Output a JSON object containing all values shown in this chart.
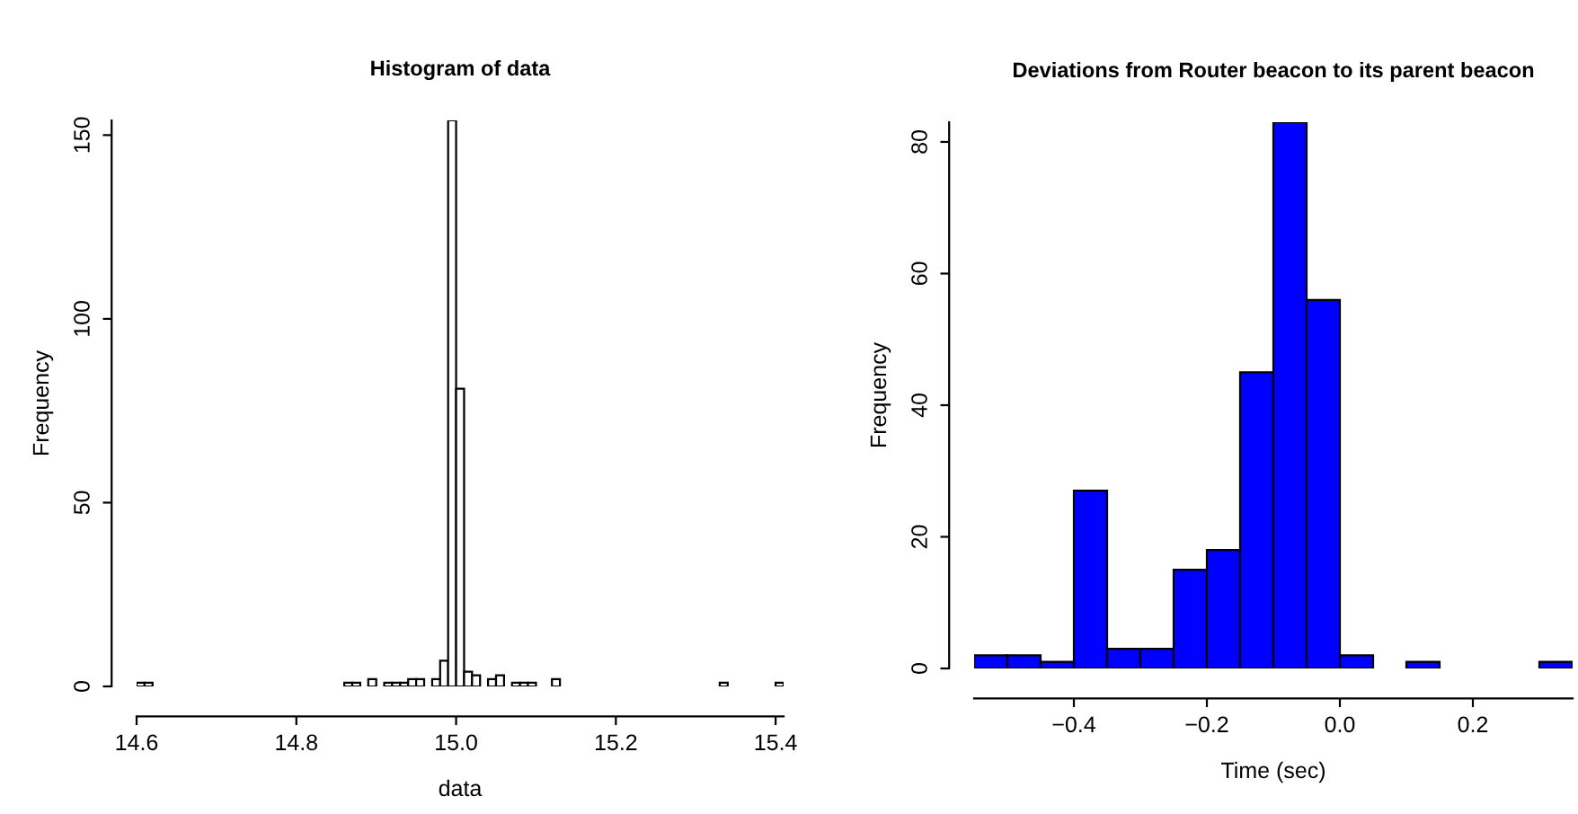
{
  "chart_data": [
    {
      "type": "histogram",
      "title": "Histogram of data",
      "xlabel": "data",
      "ylabel": "Frequency",
      "color": "#ffffff",
      "bins": [
        14.6,
        14.61,
        14.62,
        14.63,
        14.64,
        14.65,
        14.66,
        14.67,
        14.68,
        14.69,
        14.7,
        14.71,
        14.72,
        14.73,
        14.74,
        14.75,
        14.76,
        14.77,
        14.78,
        14.79,
        14.8,
        14.81,
        14.82,
        14.83,
        14.84,
        14.85,
        14.86,
        14.87,
        14.88,
        14.89,
        14.9,
        14.91,
        14.92,
        14.93,
        14.94,
        14.95,
        14.96,
        14.97,
        14.98,
        14.99,
        15.0,
        15.01,
        15.02,
        15.03,
        15.04,
        15.05,
        15.06,
        15.07,
        15.08,
        15.09,
        15.1,
        15.11,
        15.12,
        15.13,
        15.14,
        15.15,
        15.16,
        15.17,
        15.18,
        15.19,
        15.2,
        15.21,
        15.22,
        15.23,
        15.24,
        15.25,
        15.26,
        15.27,
        15.28,
        15.29,
        15.3,
        15.31,
        15.32,
        15.33,
        15.34,
        15.35,
        15.36,
        15.37,
        15.38,
        15.39,
        15.4,
        15.41
      ],
      "values": [
        1,
        1,
        0,
        0,
        0,
        0,
        0,
        0,
        0,
        0,
        0,
        0,
        0,
        0,
        0,
        0,
        0,
        0,
        0,
        0,
        0,
        0,
        0,
        0,
        0,
        0,
        1,
        1,
        0,
        2,
        0,
        1,
        1,
        1,
        2,
        2,
        0,
        2,
        7,
        154,
        81,
        4,
        3,
        0,
        2,
        3,
        0,
        1,
        1,
        1,
        0,
        0,
        2,
        0,
        0,
        0,
        0,
        0,
        0,
        0,
        0,
        0,
        0,
        0,
        0,
        0,
        0,
        0,
        0,
        0,
        0,
        0,
        0,
        1,
        0,
        0,
        0,
        0,
        0,
        0,
        1
      ],
      "xlim": [
        14.6,
        15.41
      ],
      "ylim": [
        0,
        154
      ],
      "xticks": [
        14.6,
        14.8,
        {
          "value": 15.0,
          "label": "15.0"
        },
        15.2,
        15.4
      ],
      "yticks": [
        0,
        50,
        100,
        150
      ]
    },
    {
      "type": "histogram",
      "title": "Deviations from Router beacon to its parent beacon",
      "xlabel": "Time (sec)",
      "ylabel": "Frequency",
      "color": "#0000ff",
      "bins": [
        -0.55,
        -0.5,
        -0.45,
        -0.4,
        -0.35,
        -0.3,
        -0.25,
        -0.2,
        -0.15,
        -0.1,
        -0.05,
        0.0,
        0.05,
        0.1,
        0.15,
        0.2,
        0.25,
        0.3,
        0.35
      ],
      "values": [
        2,
        2,
        1,
        27,
        3,
        3,
        15,
        18,
        45,
        83,
        56,
        2,
        0,
        1,
        0,
        0,
        0,
        1
      ],
      "xlim": [
        -0.55,
        0.35
      ],
      "ylim": [
        0,
        83
      ],
      "xticks": [
        {
          "value": -0.4,
          "label": "−0.4"
        },
        {
          "value": -0.2,
          "label": "−0.2"
        },
        {
          "value": 0.0,
          "label": "0.0"
        },
        {
          "value": 0.2,
          "label": "0.2"
        }
      ],
      "yticks": [
        0,
        20,
        40,
        60,
        80
      ]
    }
  ]
}
